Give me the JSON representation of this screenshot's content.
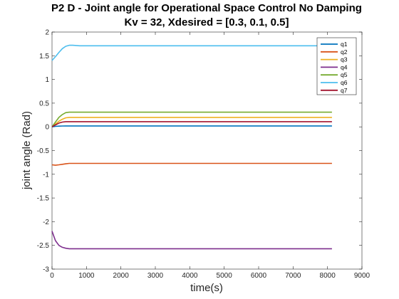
{
  "chart_data": {
    "type": "line",
    "title": "P2 D - Joint angle for Operational Space Control No Damping",
    "subtitle": "Kv = 32, Xdesired = [0.3, 0.1, 0.5]",
    "xlabel": "time(s)",
    "ylabel": "joint angle (Rad)",
    "xlim": [
      0,
      9000
    ],
    "ylim": [
      -3,
      2
    ],
    "xticks": [
      0,
      1000,
      2000,
      3000,
      4000,
      5000,
      6000,
      7000,
      8000,
      9000
    ],
    "yticks": [
      -3,
      -2.5,
      -2,
      -1.5,
      -1,
      -0.5,
      0,
      0.5,
      1,
      1.5,
      2
    ],
    "grid": false,
    "legend_position": "top-right",
    "series": [
      {
        "name": "q1",
        "color": "#0072BD",
        "x": [
          0,
          100,
          200,
          300,
          400,
          500,
          600,
          800,
          1000,
          8130
        ],
        "y": [
          0.0,
          0.01,
          0.015,
          0.018,
          0.02,
          0.02,
          0.02,
          0.02,
          0.02,
          0.02
        ]
      },
      {
        "name": "q2",
        "color": "#D95319",
        "x": [
          0,
          100,
          200,
          300,
          400,
          500,
          600,
          800,
          1000,
          8130
        ],
        "y": [
          -0.8,
          -0.81,
          -0.8,
          -0.79,
          -0.78,
          -0.77,
          -0.77,
          -0.77,
          -0.77,
          -0.77
        ]
      },
      {
        "name": "q3",
        "color": "#EDB120",
        "x": [
          0,
          100,
          200,
          300,
          400,
          500,
          600,
          800,
          1000,
          8130
        ],
        "y": [
          0.0,
          0.06,
          0.12,
          0.16,
          0.19,
          0.2,
          0.2,
          0.2,
          0.2,
          0.2
        ]
      },
      {
        "name": "q4",
        "color": "#7E2F8E",
        "x": [
          0,
          50,
          100,
          200,
          300,
          400,
          500,
          600,
          800,
          1000,
          8130
        ],
        "y": [
          -2.2,
          -2.3,
          -2.4,
          -2.5,
          -2.54,
          -2.56,
          -2.57,
          -2.57,
          -2.57,
          -2.57,
          -2.57
        ]
      },
      {
        "name": "q5",
        "color": "#77AC30",
        "x": [
          0,
          100,
          200,
          300,
          400,
          500,
          600,
          800,
          1000,
          8130
        ],
        "y": [
          0.0,
          0.1,
          0.2,
          0.26,
          0.3,
          0.31,
          0.31,
          0.31,
          0.31,
          0.31
        ]
      },
      {
        "name": "q6",
        "color": "#4DBEEE",
        "x": [
          0,
          100,
          200,
          300,
          400,
          500,
          600,
          800,
          1000,
          8130
        ],
        "y": [
          1.4,
          1.48,
          1.57,
          1.65,
          1.7,
          1.72,
          1.72,
          1.71,
          1.71,
          1.71
        ]
      },
      {
        "name": "q7",
        "color": "#A2142F",
        "x": [
          0,
          100,
          200,
          300,
          400,
          500,
          600,
          800,
          1000,
          8130
        ],
        "y": [
          0.0,
          0.04,
          0.08,
          0.1,
          0.11,
          0.11,
          0.11,
          0.11,
          0.11,
          0.11
        ]
      }
    ]
  }
}
